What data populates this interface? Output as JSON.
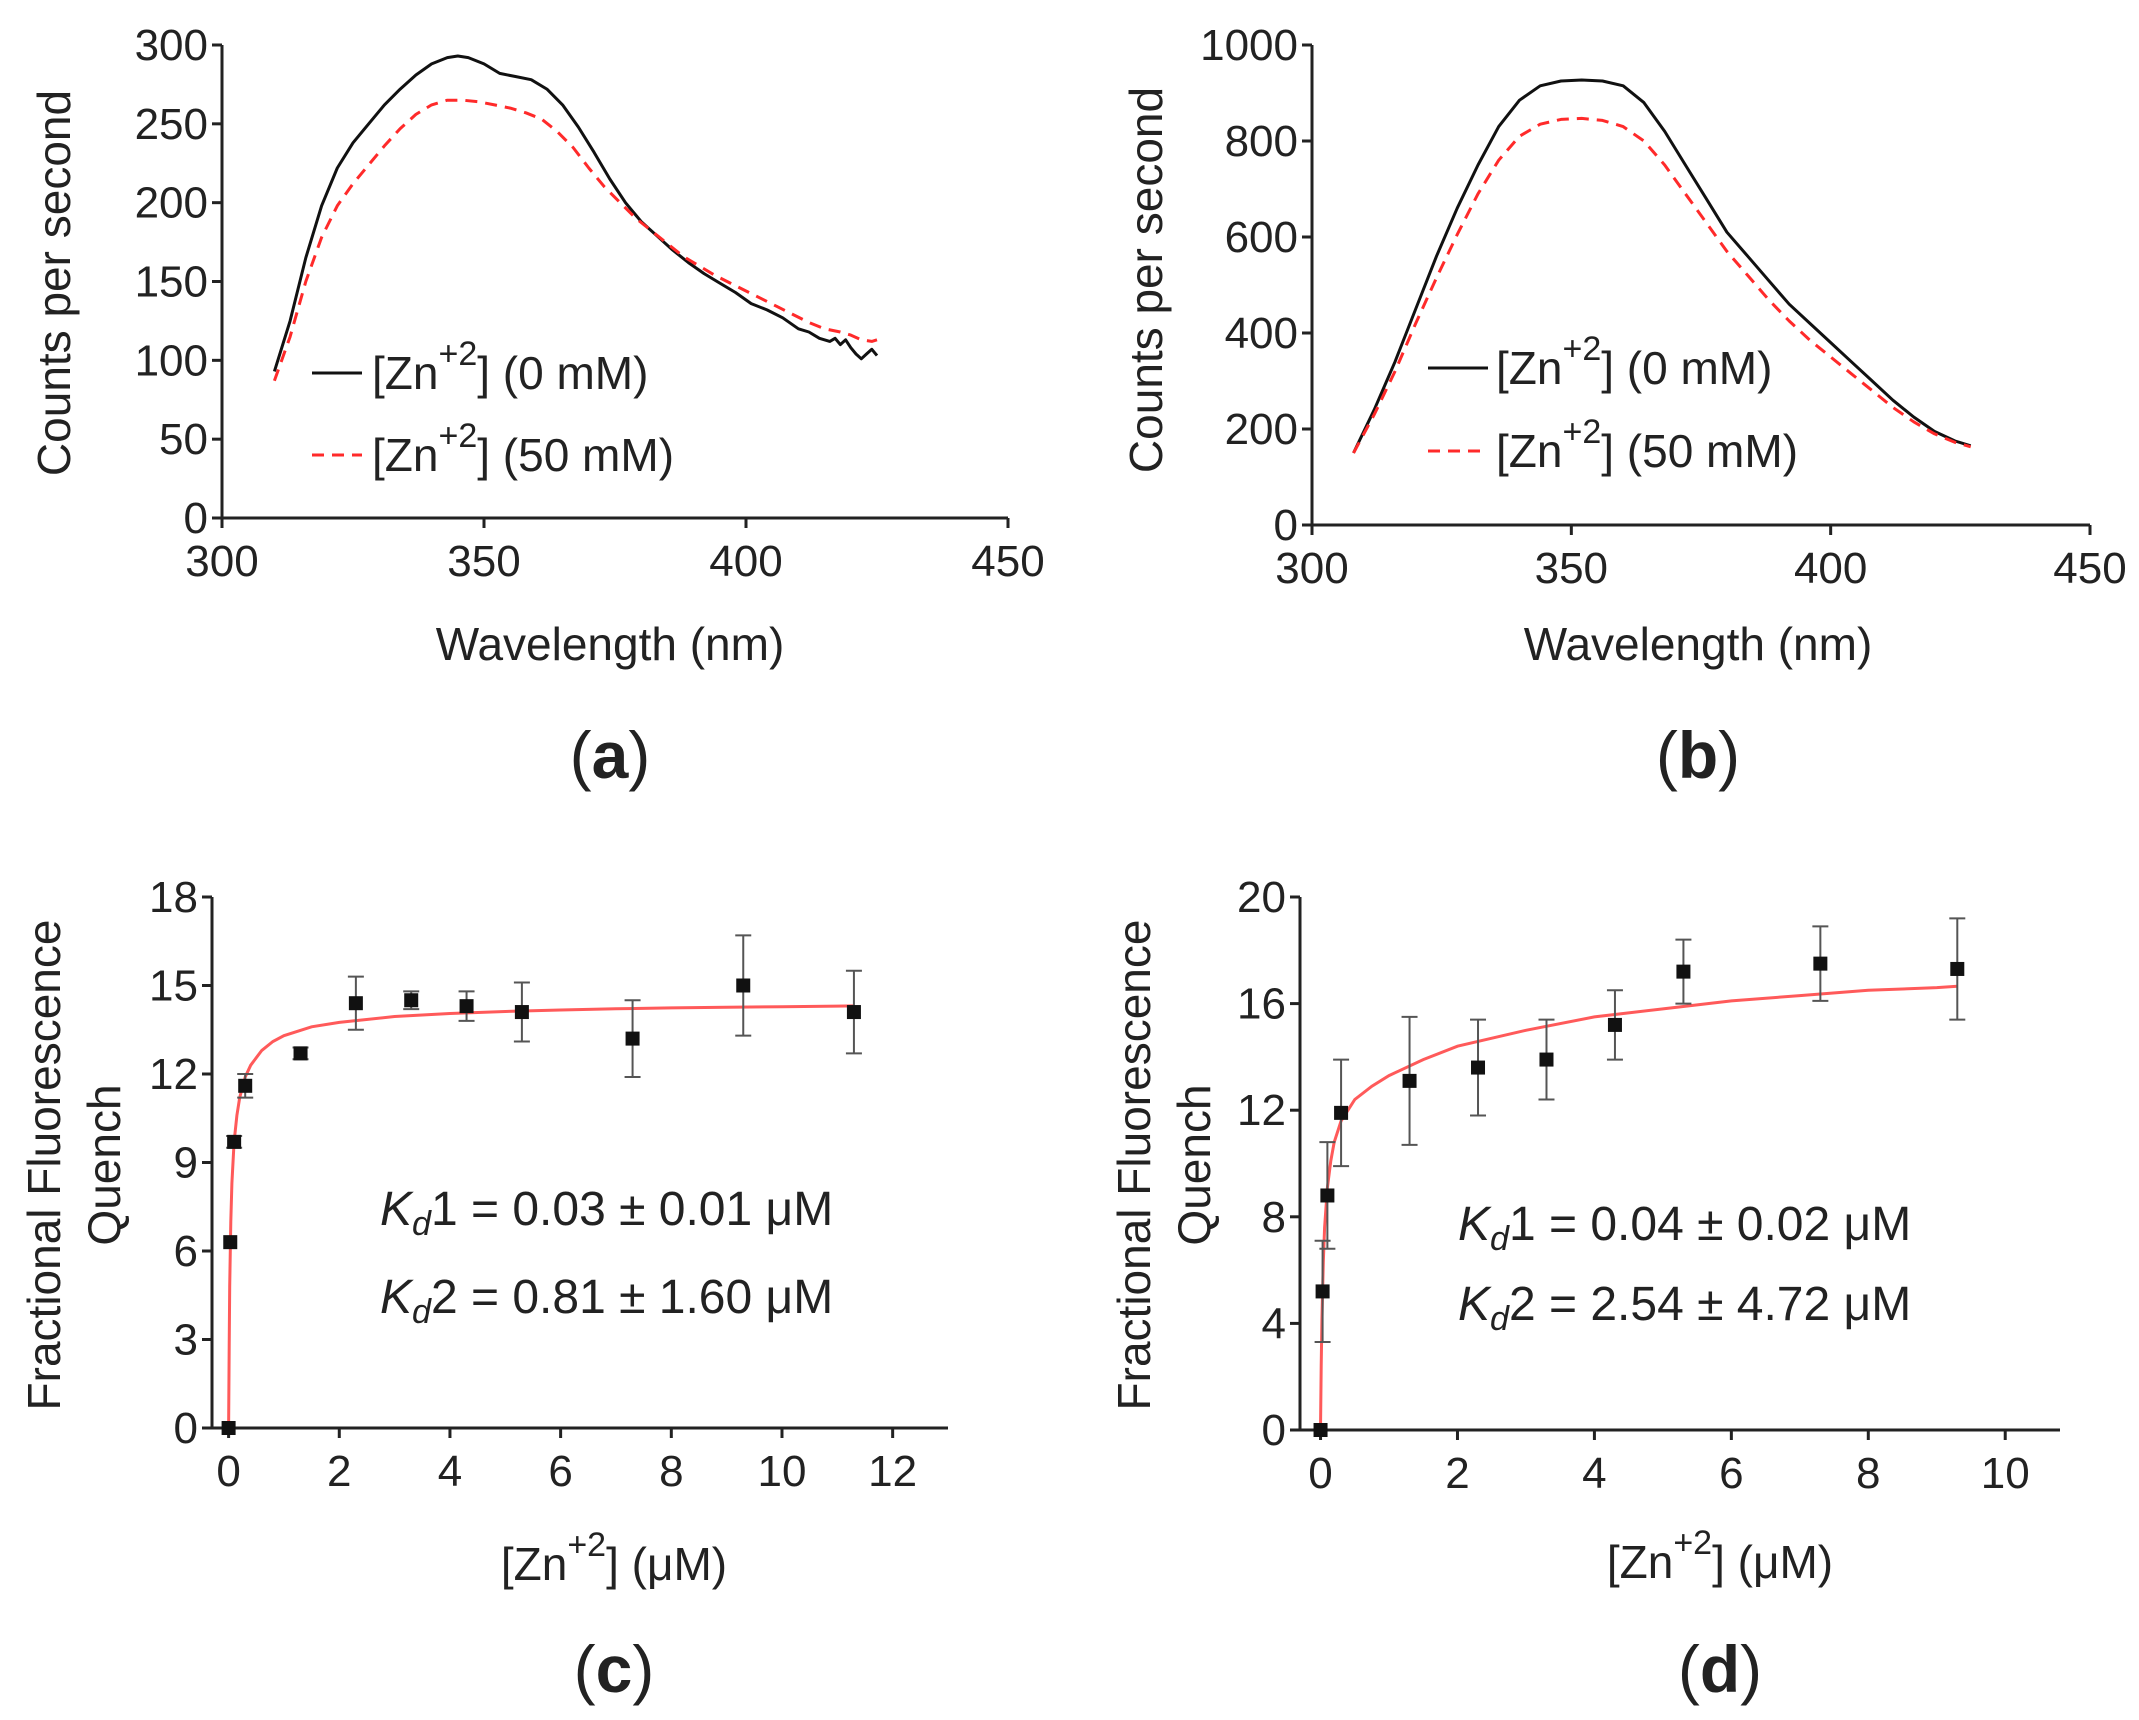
{
  "chart_data": [
    {
      "id": "a",
      "type": "line",
      "panel_label": "a",
      "xlabel": "Wavelength (nm)",
      "ylabel": "Counts per second",
      "xlim": [
        300,
        450
      ],
      "ylim": [
        0,
        300
      ],
      "xticks": [
        300,
        350,
        400,
        450
      ],
      "yticks": [
        0,
        50,
        100,
        150,
        200,
        250,
        300
      ],
      "legend_position": "lower-left",
      "series": [
        {
          "name": "[Zn+2] (0 mM)",
          "legend_prefix": "[Zn",
          "legend_sup": "+2",
          "legend_suffix": "] (0 mM)",
          "color": "#111111",
          "style": "solid",
          "x": [
            310,
            313,
            316,
            319,
            322,
            325,
            328,
            331,
            334,
            337,
            340,
            343,
            345,
            347,
            350,
            353,
            356,
            359,
            362,
            365,
            368,
            371,
            374,
            377,
            380,
            383,
            386,
            389,
            392,
            395,
            398,
            401,
            404,
            407,
            410,
            412,
            414,
            416,
            417,
            418,
            419,
            420,
            421,
            422,
            423,
            424,
            425
          ],
          "y": [
            93,
            125,
            165,
            198,
            222,
            238,
            250,
            262,
            272,
            281,
            288,
            292,
            293,
            292,
            288,
            282,
            280,
            278,
            272,
            262,
            248,
            232,
            215,
            200,
            188,
            179,
            170,
            162,
            155,
            149,
            143,
            136,
            132,
            127,
            120,
            118,
            114,
            112,
            114,
            110,
            113,
            108,
            104,
            101,
            104,
            107,
            103
          ]
        },
        {
          "name": "[Zn+2] (50 mM)",
          "legend_prefix": "[Zn",
          "legend_sup": "+2",
          "legend_suffix": "] (50 mM)",
          "color": "#ff2a2a",
          "style": "dashed",
          "x": [
            310,
            313,
            316,
            319,
            322,
            325,
            328,
            331,
            334,
            337,
            340,
            343,
            346,
            349,
            352,
            355,
            358,
            361,
            364,
            367,
            370,
            373,
            376,
            379,
            382,
            385,
            388,
            391,
            394,
            397,
            400,
            403,
            406,
            409,
            412,
            415,
            418,
            420,
            422,
            424,
            425
          ],
          "y": [
            87,
            115,
            150,
            178,
            198,
            212,
            224,
            236,
            247,
            256,
            262,
            265,
            265,
            264,
            262,
            260,
            257,
            253,
            245,
            235,
            222,
            210,
            200,
            190,
            182,
            174,
            166,
            160,
            154,
            149,
            144,
            139,
            134,
            129,
            124,
            120,
            118,
            116,
            113,
            112,
            113
          ]
        }
      ]
    },
    {
      "id": "b",
      "type": "line",
      "panel_label": "b",
      "xlabel": "Wavelength (nm)",
      "ylabel": "Counts per second",
      "xlim": [
        300,
        450
      ],
      "ylim": [
        0,
        1000
      ],
      "xticks": [
        300,
        350,
        400,
        450
      ],
      "yticks": [
        0,
        200,
        400,
        600,
        800,
        1000
      ],
      "legend_position": "lower-center",
      "series": [
        {
          "name": "[Zn+2] (0 mM)",
          "legend_prefix": "[Zn",
          "legend_sup": "+2",
          "legend_suffix": "] (0 mM)",
          "color": "#111111",
          "style": "solid",
          "x": [
            308,
            312,
            316,
            320,
            324,
            328,
            332,
            336,
            340,
            344,
            348,
            352,
            356,
            360,
            364,
            368,
            372,
            376,
            380,
            384,
            388,
            392,
            396,
            400,
            404,
            408,
            412,
            416,
            420,
            424,
            427
          ],
          "y": [
            150,
            240,
            340,
            450,
            560,
            660,
            750,
            830,
            885,
            915,
            925,
            927,
            925,
            915,
            880,
            820,
            750,
            680,
            610,
            560,
            510,
            460,
            420,
            380,
            340,
            300,
            260,
            225,
            195,
            175,
            165
          ]
        },
        {
          "name": "[Zn+2] (50 mM)",
          "legend_prefix": "[Zn",
          "legend_sup": "+2",
          "legend_suffix": "] (50 mM)",
          "color": "#ff2a2a",
          "style": "dashed",
          "x": [
            308,
            312,
            316,
            320,
            324,
            328,
            332,
            336,
            340,
            344,
            348,
            352,
            356,
            360,
            364,
            368,
            372,
            376,
            380,
            384,
            388,
            392,
            396,
            400,
            404,
            408,
            412,
            416,
            420,
            424,
            427
          ],
          "y": [
            150,
            230,
            320,
            420,
            515,
            605,
            690,
            760,
            810,
            835,
            845,
            847,
            843,
            830,
            800,
            750,
            690,
            630,
            570,
            520,
            470,
            425,
            385,
            350,
            315,
            280,
            245,
            215,
            190,
            172,
            163
          ]
        }
      ]
    },
    {
      "id": "c",
      "type": "scatter",
      "panel_label": "c",
      "xlabel_prefix": "[Zn",
      "xlabel_sup": "+2",
      "xlabel_suffix": "] (μM)",
      "ylabel": "Fractional Fluorescence",
      "ylabel2": "Quench",
      "xlim": [
        -0.3,
        13
      ],
      "ylim": [
        0,
        18
      ],
      "xticks": [
        0,
        2,
        4,
        6,
        8,
        10,
        12
      ],
      "yticks": [
        0,
        3,
        6,
        9,
        12,
        15,
        18
      ],
      "annotations": [
        "K_d1 = 0.03 ± 0.01 μM",
        "K_d2 = 0.81 ± 1.60 μM"
      ],
      "kd1_value": "1 = 0.03 ± 0.01 μM",
      "kd2_value": "2 = 0.81 ± 1.60 μM",
      "kd_symbol": "K",
      "kd_sub": "d",
      "points": {
        "x": [
          0,
          0.03,
          0.1,
          0.3,
          1.3,
          2.3,
          3.3,
          4.3,
          5.3,
          7.3,
          9.3,
          11.3
        ],
        "y": [
          0,
          6.3,
          9.7,
          11.6,
          12.7,
          14.4,
          14.5,
          14.3,
          14.1,
          13.2,
          15.0,
          14.1
        ],
        "err": [
          0,
          0,
          0.2,
          0.4,
          0.2,
          0.9,
          0.3,
          0.5,
          1.0,
          1.3,
          1.7,
          1.4
        ]
      },
      "fit": {
        "color": "#ff5a5a",
        "x": [
          0,
          0.01,
          0.02,
          0.04,
          0.06,
          0.1,
          0.15,
          0.2,
          0.3,
          0.4,
          0.6,
          0.8,
          1.0,
          1.5,
          2.0,
          3.0,
          4.0,
          5.0,
          6.0,
          7.0,
          8.0,
          9.0,
          10.0,
          11.0,
          11.3
        ],
        "y": [
          0,
          2.8,
          4.8,
          7.0,
          8.3,
          9.7,
          10.6,
          11.2,
          11.9,
          12.3,
          12.8,
          13.1,
          13.3,
          13.6,
          13.75,
          13.95,
          14.05,
          14.12,
          14.17,
          14.21,
          14.24,
          14.26,
          14.28,
          14.3,
          14.31
        ]
      }
    },
    {
      "id": "d",
      "type": "scatter",
      "panel_label": "d",
      "xlabel_prefix": "[Zn",
      "xlabel_sup": "+2",
      "xlabel_suffix": "] (μM)",
      "ylabel": "Fractional Fluorescence",
      "ylabel2": "Quench",
      "xlim": [
        -0.3,
        10.8
      ],
      "ylim": [
        0,
        20
      ],
      "xticks": [
        0,
        2,
        4,
        6,
        8,
        10
      ],
      "yticks": [
        0,
        4,
        8,
        12,
        16,
        20
      ],
      "annotations": [
        "K_d1 = 0.04 ± 0.02 μM",
        "K_d2 = 2.54 ± 4.72 μM"
      ],
      "kd1_value": "1 = 0.04 ± 0.02 μM",
      "kd2_value": "2 = 2.54 ± 4.72 μM",
      "kd_symbol": "K",
      "kd_sub": "d",
      "points": {
        "x": [
          0,
          0.03,
          0.1,
          0.3,
          1.3,
          2.3,
          3.3,
          4.3,
          5.3,
          7.3,
          9.3
        ],
        "y": [
          0,
          5.2,
          8.8,
          11.9,
          13.1,
          13.6,
          13.9,
          15.2,
          17.2,
          17.5,
          17.3
        ],
        "err": [
          0,
          1.9,
          2.0,
          2.0,
          2.4,
          1.8,
          1.5,
          1.3,
          1.2,
          1.4,
          1.9
        ]
      },
      "fit": {
        "color": "#ff5a5a",
        "x": [
          0,
          0.01,
          0.02,
          0.04,
          0.06,
          0.1,
          0.15,
          0.2,
          0.3,
          0.5,
          0.75,
          1.0,
          1.5,
          2.0,
          3.0,
          4.0,
          5.0,
          6.0,
          7.0,
          8.0,
          9.0,
          9.3
        ],
        "y": [
          0,
          2.4,
          4.1,
          6.3,
          7.6,
          9.1,
          10.1,
          10.8,
          11.6,
          12.4,
          12.9,
          13.3,
          13.9,
          14.4,
          15.0,
          15.5,
          15.8,
          16.1,
          16.3,
          16.5,
          16.6,
          16.65
        ]
      }
    }
  ]
}
